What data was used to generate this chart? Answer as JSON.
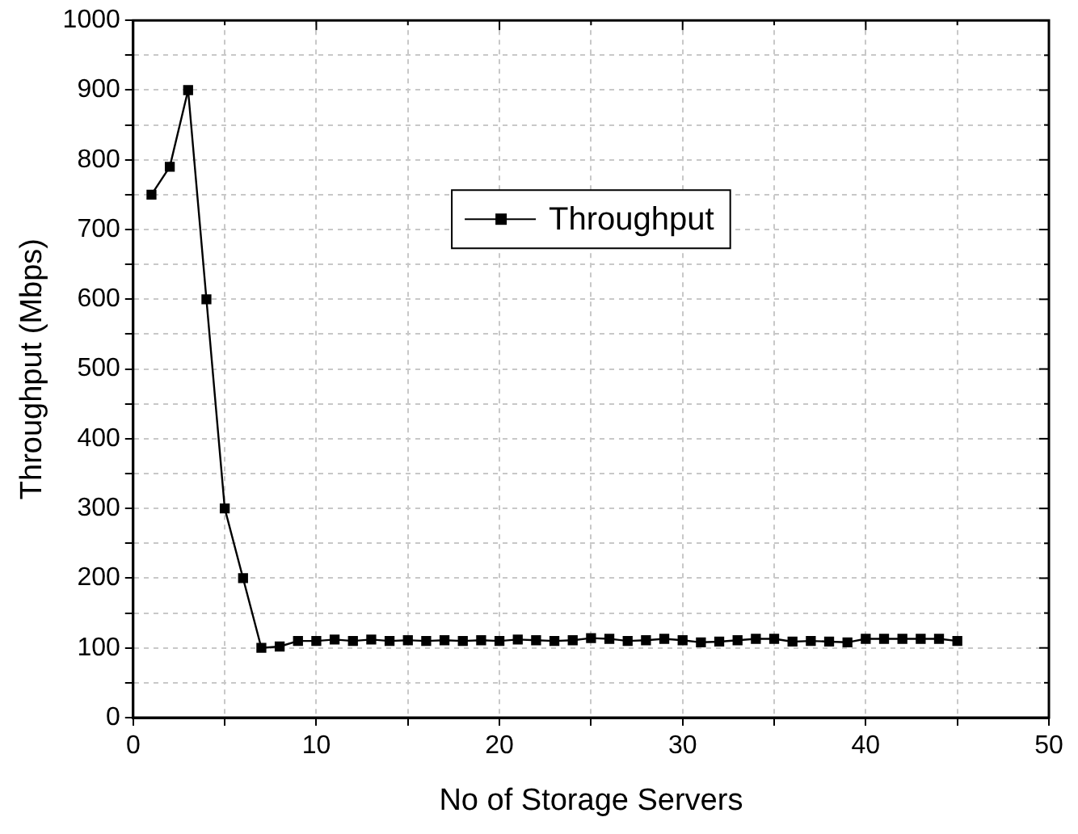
{
  "chart_data": {
    "type": "line",
    "xlabel": "No of Storage Servers",
    "ylabel": "Throughput (Mbps)",
    "x": [
      1,
      2,
      3,
      4,
      5,
      6,
      7,
      8,
      9,
      10,
      11,
      12,
      13,
      14,
      15,
      16,
      17,
      18,
      19,
      20,
      21,
      22,
      23,
      24,
      25,
      26,
      27,
      28,
      29,
      30,
      31,
      32,
      33,
      34,
      35,
      36,
      37,
      38,
      39,
      40,
      41,
      42,
      43,
      44,
      45
    ],
    "series": [
      {
        "name": "Throughput",
        "color": "#000000",
        "values": [
          750,
          790,
          900,
          600,
          300,
          200,
          100,
          102,
          110,
          110,
          112,
          110,
          112,
          110,
          111,
          110,
          111,
          110,
          111,
          110,
          112,
          111,
          110,
          111,
          114,
          113,
          110,
          111,
          113,
          111,
          108,
          109,
          111,
          113,
          113,
          109,
          110,
          109,
          108,
          113,
          113,
          113,
          113,
          113,
          110
        ]
      }
    ],
    "xlim": [
      0,
      50
    ],
    "ylim": [
      0,
      1000
    ],
    "xticks": [
      0,
      {
        "value": 5,
        "label": null
      },
      10,
      {
        "value": 15,
        "label": null
      },
      20,
      {
        "value": 25,
        "label": null
      },
      30,
      {
        "value": 35,
        "label": null
      },
      40,
      {
        "value": 45,
        "label": null
      },
      50
    ],
    "yticks": [
      0,
      {
        "value": 50,
        "label": null
      },
      100,
      {
        "value": 150,
        "label": null
      },
      200,
      {
        "value": 250,
        "label": null
      },
      300,
      {
        "value": 350,
        "label": null
      },
      400,
      {
        "value": 450,
        "label": null
      },
      500,
      {
        "value": 550,
        "label": null
      },
      600,
      {
        "value": 650,
        "label": null
      },
      700,
      {
        "value": 750,
        "label": null
      },
      800,
      {
        "value": 850,
        "label": null
      },
      900,
      {
        "value": 950,
        "label": null
      },
      1000
    ],
    "grid": true,
    "legend": "top",
    "marker": "square",
    "line_style": "solid"
  }
}
